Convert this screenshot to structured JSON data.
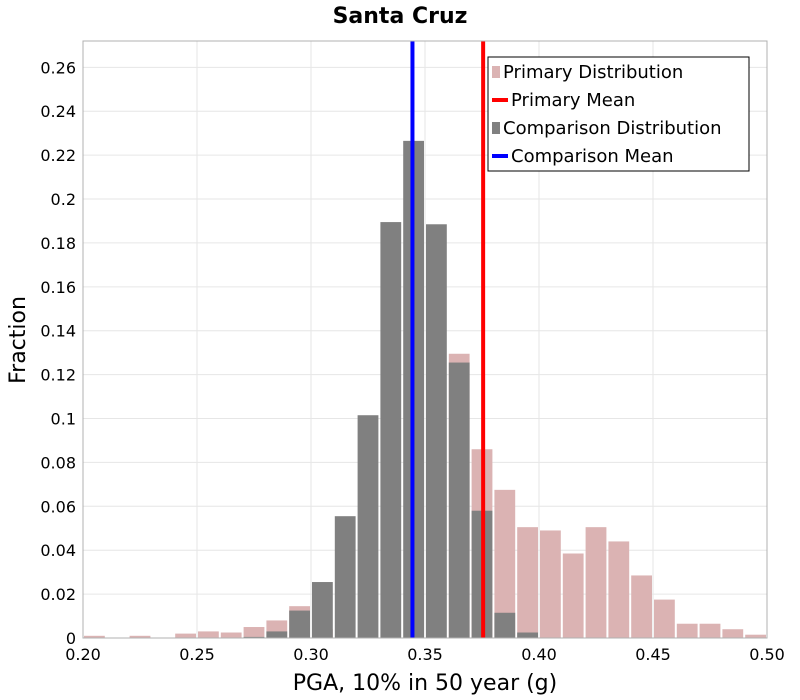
{
  "colors": {
    "primary_bar": "#dbb3b3",
    "comparison_bar": "#808080",
    "primary_mean": "#ff0000",
    "comparison_mean": "#0000ff",
    "grid": "#e6e6e6"
  },
  "chart_data": {
    "type": "bar",
    "title": "Santa Cruz",
    "xlabel": "PGA, 10% in 50 year (g)",
    "ylabel": "Fraction",
    "xlim": [
      0.2,
      0.5
    ],
    "ylim": [
      0,
      0.272
    ],
    "grid": true,
    "legend_position": "top-right",
    "bin_width": 0.01,
    "x_ticks": [
      0.2,
      0.25,
      0.3,
      0.35,
      0.4,
      0.45,
      0.5
    ],
    "x_tick_labels": [
      "0.20",
      "0.25",
      "0.30",
      "0.35",
      "0.40",
      "0.45",
      "0.50"
    ],
    "y_ticks": [
      0,
      0.02,
      0.04,
      0.06,
      0.08,
      0.1,
      0.12,
      0.14,
      0.16,
      0.18,
      0.2,
      0.22,
      0.24,
      0.26
    ],
    "y_tick_labels": [
      "0",
      "0.02",
      "0.04",
      "0.06",
      "0.08",
      "0.1",
      "0.12",
      "0.14",
      "0.16",
      "0.18",
      "0.2",
      "0.22",
      "0.24",
      "0.26"
    ],
    "series": [
      {
        "name": "Primary Distribution",
        "kind": "histogram",
        "bin_centers": [
          0.205,
          0.215,
          0.225,
          0.235,
          0.245,
          0.255,
          0.265,
          0.275,
          0.285,
          0.295,
          0.305,
          0.315,
          0.325,
          0.335,
          0.345,
          0.355,
          0.365,
          0.375,
          0.385,
          0.395,
          0.405,
          0.415,
          0.425,
          0.435,
          0.445,
          0.455,
          0.465,
          0.475,
          0.485,
          0.495
        ],
        "values": [
          0.001,
          0.0,
          0.001,
          0.0,
          0.002,
          0.003,
          0.0025,
          0.005,
          0.008,
          0.0145,
          0.004,
          0.0,
          0.0,
          0.0,
          0.0,
          0.0,
          0.1295,
          0.086,
          0.0675,
          0.0505,
          0.049,
          0.0385,
          0.0505,
          0.044,
          0.0285,
          0.0175,
          0.0065,
          0.0065,
          0.004,
          0.0015
        ]
      },
      {
        "name": "Comparison Distribution",
        "kind": "histogram",
        "bin_centers": [
          0.275,
          0.285,
          0.295,
          0.305,
          0.315,
          0.325,
          0.335,
          0.345,
          0.355,
          0.365,
          0.375,
          0.385,
          0.395
        ],
        "values": [
          0.0005,
          0.003,
          0.0125,
          0.0255,
          0.0555,
          0.1015,
          0.1895,
          0.2265,
          0.1885,
          0.1255,
          0.058,
          0.0115,
          0.0025
        ]
      },
      {
        "name": "Primary Mean",
        "kind": "vline",
        "x": 0.3755
      },
      {
        "name": "Comparison Mean",
        "kind": "vline",
        "x": 0.3445
      }
    ]
  }
}
